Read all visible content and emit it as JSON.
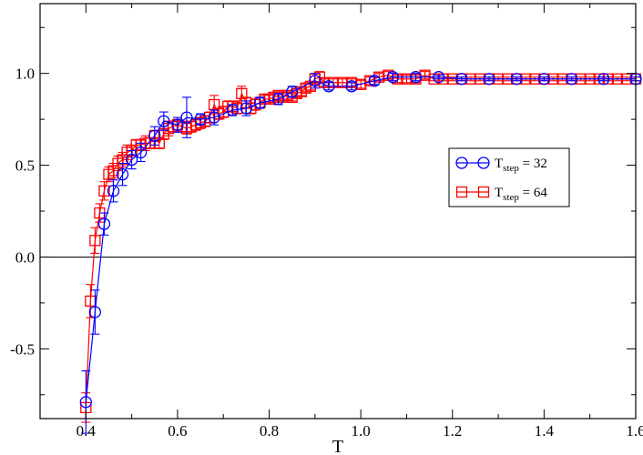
{
  "chart_data": {
    "type": "line",
    "title": "",
    "xlabel": "T",
    "ylabel": "",
    "xlim": [
      0.3,
      1.6
    ],
    "ylim": [
      -0.88,
      1.38
    ],
    "xticks": [
      0.4,
      0.6,
      0.8,
      1.0,
      1.2,
      1.4,
      1.6
    ],
    "xtick_labels": [
      "0.4",
      "0.6",
      "0.8",
      "1.0",
      "1.2",
      "1.4",
      "1.6"
    ],
    "yticks": [
      -0.5,
      0.0,
      0.5,
      1.0
    ],
    "ytick_labels": [
      "-0.5",
      "0.0",
      "0.5",
      "1.0"
    ],
    "reference_line": 0.0,
    "grid": false,
    "legend_position": "right-center",
    "series": [
      {
        "name_main": "T",
        "name_sub": "step",
        "name_rest": " = 32",
        "color": "#0000ff",
        "marker": "circle",
        "x": [
          0.4,
          0.42,
          0.44,
          0.46,
          0.48,
          0.5,
          0.52,
          0.55,
          0.57,
          0.6,
          0.62,
          0.65,
          0.68,
          0.72,
          0.75,
          0.78,
          0.82,
          0.85,
          0.9,
          0.93,
          0.98,
          1.03,
          1.07,
          1.12,
          1.17,
          1.22,
          1.28,
          1.34,
          1.4,
          1.46,
          1.53,
          1.6
        ],
        "y": [
          -0.79,
          -0.3,
          0.18,
          0.36,
          0.45,
          0.53,
          0.57,
          0.66,
          0.74,
          0.72,
          0.76,
          0.75,
          0.76,
          0.8,
          0.81,
          0.84,
          0.86,
          0.9,
          0.96,
          0.93,
          0.93,
          0.96,
          0.98,
          0.98,
          0.98,
          0.97,
          0.97,
          0.97,
          0.97,
          0.97,
          0.97,
          0.97
        ],
        "err": [
          0.17,
          0.12,
          0.06,
          0.06,
          0.06,
          0.05,
          0.05,
          0.05,
          0.05,
          0.04,
          0.11,
          0.03,
          0.04,
          0.03,
          0.04,
          0.03,
          0.03,
          0.03,
          0.04,
          0.02,
          0.02,
          0.02,
          0.02,
          0.02,
          0.01,
          0.01,
          0.01,
          0.01,
          0.01,
          0.01,
          0.01,
          0.01
        ]
      },
      {
        "name_main": "T",
        "name_sub": "step",
        "name_rest": " = 64",
        "color": "#ff0000",
        "marker": "square",
        "x": [
          0.4,
          0.41,
          0.42,
          0.43,
          0.44,
          0.45,
          0.46,
          0.47,
          0.48,
          0.49,
          0.5,
          0.51,
          0.52,
          0.53,
          0.54,
          0.55,
          0.56,
          0.57,
          0.58,
          0.59,
          0.6,
          0.61,
          0.62,
          0.63,
          0.64,
          0.65,
          0.66,
          0.67,
          0.68,
          0.69,
          0.7,
          0.71,
          0.72,
          0.73,
          0.74,
          0.75,
          0.76,
          0.77,
          0.78,
          0.79,
          0.8,
          0.81,
          0.82,
          0.83,
          0.84,
          0.85,
          0.86,
          0.87,
          0.88,
          0.89,
          0.9,
          0.91,
          0.92,
          0.94,
          0.96,
          0.98,
          1.0,
          1.02,
          1.04,
          1.06,
          1.08,
          1.1,
          1.12,
          1.14,
          1.16,
          1.18,
          1.2,
          1.22,
          1.24,
          1.26,
          1.28,
          1.3,
          1.32,
          1.34,
          1.36,
          1.38,
          1.4,
          1.42,
          1.44,
          1.46,
          1.48,
          1.5,
          1.52,
          1.54,
          1.56,
          1.58,
          1.6
        ],
        "y": [
          -0.82,
          -0.24,
          0.09,
          0.24,
          0.36,
          0.45,
          0.47,
          0.51,
          0.53,
          0.57,
          0.58,
          0.61,
          0.61,
          0.62,
          0.62,
          0.66,
          0.62,
          0.67,
          0.7,
          0.71,
          0.72,
          0.71,
          0.7,
          0.71,
          0.72,
          0.73,
          0.74,
          0.76,
          0.83,
          0.78,
          0.79,
          0.82,
          0.82,
          0.81,
          0.89,
          0.84,
          0.81,
          0.83,
          0.84,
          0.86,
          0.86,
          0.87,
          0.88,
          0.87,
          0.88,
          0.87,
          0.89,
          0.9,
          0.92,
          0.93,
          0.97,
          0.98,
          0.95,
          0.95,
          0.95,
          0.95,
          0.94,
          0.96,
          0.98,
          0.99,
          0.97,
          0.97,
          0.97,
          0.99,
          0.97,
          0.97,
          0.97,
          0.97,
          0.97,
          0.97,
          0.97,
          0.97,
          0.97,
          0.97,
          0.97,
          0.97,
          0.97,
          0.97,
          0.97,
          0.97,
          0.97,
          0.97,
          0.97,
          0.97,
          0.97,
          0.97,
          0.97
        ],
        "err": [
          0.08,
          0.09,
          0.07,
          0.05,
          0.05,
          0.04,
          0.04,
          0.04,
          0.04,
          0.04,
          0.03,
          0.03,
          0.03,
          0.04,
          0.03,
          0.03,
          0.03,
          0.03,
          0.04,
          0.03,
          0.03,
          0.03,
          0.03,
          0.03,
          0.03,
          0.03,
          0.03,
          0.03,
          0.05,
          0.03,
          0.03,
          0.03,
          0.03,
          0.03,
          0.04,
          0.03,
          0.03,
          0.03,
          0.03,
          0.02,
          0.02,
          0.02,
          0.02,
          0.02,
          0.02,
          0.02,
          0.02,
          0.02,
          0.02,
          0.02,
          0.03,
          0.03,
          0.02,
          0.02,
          0.02,
          0.02,
          0.02,
          0.02,
          0.02,
          0.02,
          0.02,
          0.02,
          0.02,
          0.02,
          0.01,
          0.01,
          0.01,
          0.01,
          0.01,
          0.01,
          0.01,
          0.01,
          0.01,
          0.01,
          0.01,
          0.01,
          0.01,
          0.01,
          0.01,
          0.01,
          0.01,
          0.01,
          0.01,
          0.01,
          0.01,
          0.01,
          0.01
        ]
      }
    ]
  }
}
